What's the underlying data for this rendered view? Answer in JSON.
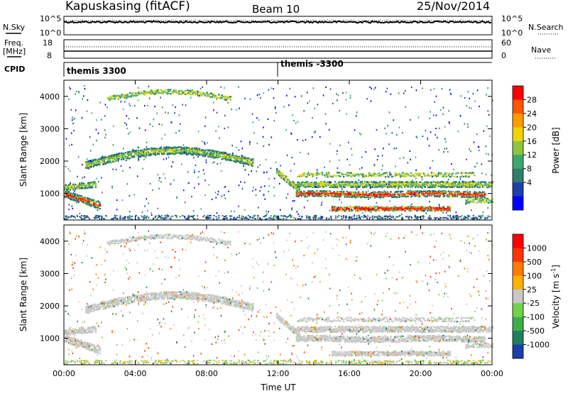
{
  "header": {
    "station": "Kapuskasing (fitACF)",
    "beam": "Beam 10",
    "date": "25/Nov/2014"
  },
  "top_panels": {
    "nsky_label": "N.Sky",
    "nsky_ticks": [
      "10^5",
      "10^0"
    ],
    "nsearch_label": "N.Search",
    "nsearch_ticks": [
      "10^5",
      "10^0"
    ],
    "freq_label": "Freq.",
    "freq_unit": "[MHz]",
    "freq_ticks": [
      "18",
      "8"
    ],
    "nave_label": "Nave",
    "nave_ticks": [
      "60",
      "0"
    ],
    "cpid_label": "CPID",
    "cpid_1": "themis 3300",
    "cpid_2": "themis -3300"
  },
  "chart_data": [
    {
      "type": "heatmap",
      "name": "power",
      "ylabel": "Slant Range [km]",
      "xlabel": "",
      "x_range_hours": [
        0,
        24
      ],
      "ylim": [
        180,
        4500
      ],
      "x_ticks": [
        "00:00",
        "04:00",
        "08:00",
        "12:00",
        "16:00",
        "20:00",
        "00:00"
      ],
      "y_ticks": [
        1000,
        2000,
        3000,
        4000
      ],
      "colorbar_label": "Power [dB]",
      "colorbar_ticks": [
        "28",
        "24",
        "20",
        "16",
        "12",
        "8",
        "4"
      ],
      "colorbar_colors": [
        "#0000ff",
        "#1c3faa",
        "#2f7d6b",
        "#3da86b",
        "#8cc640",
        "#f2d300",
        "#ff9900",
        "#ff5500",
        "#ff0000"
      ]
    },
    {
      "type": "heatmap",
      "name": "velocity",
      "ylabel": "Slant Range [km]",
      "xlabel": "Time UT",
      "x_range_hours": [
        0,
        24
      ],
      "ylim": [
        180,
        4500
      ],
      "x_ticks": [
        "00:00",
        "04:00",
        "08:00",
        "12:00",
        "16:00",
        "20:00",
        "00:00"
      ],
      "y_ticks": [
        1000,
        2000,
        3000,
        4000
      ],
      "colorbar_label": "Velocity [m s",
      "colorbar_label_sup": "-1",
      "colorbar_label_end": "]",
      "colorbar_ticks": [
        "1000",
        "500",
        "100",
        "25",
        "-25",
        "-100",
        "-500",
        "-1000"
      ],
      "colorbar_colors": [
        "#1a3faa",
        "#1f7f5f",
        "#3dae4b",
        "#72d24a",
        "#c8c8c8",
        "#ffb000",
        "#ff7a00",
        "#ff3300",
        "#ff0000"
      ]
    }
  ]
}
